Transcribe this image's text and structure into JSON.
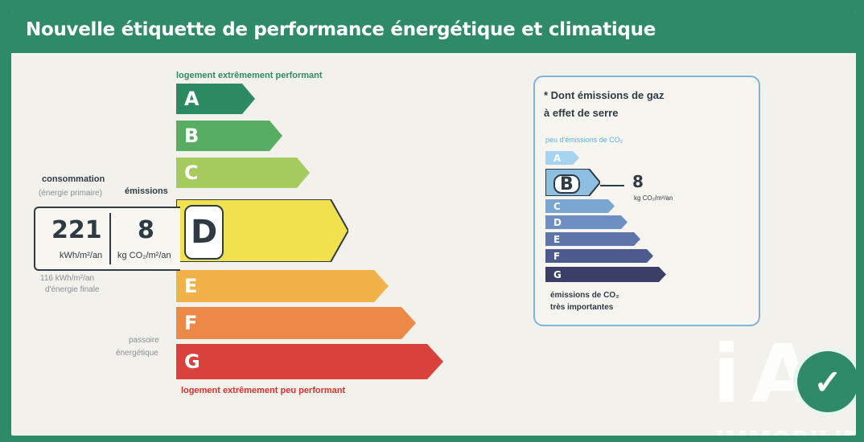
{
  "title": "Nouvelle étiquette de performance énergétique et climatique",
  "energy_label": {
    "top_caption": "logement extrêmement performant",
    "bottom_caption": "logement extrêmement peu performant",
    "classes": [
      {
        "letter": "A",
        "color": "#2c8a63"
      },
      {
        "letter": "B",
        "color": "#57ad62"
      },
      {
        "letter": "C",
        "color": "#a5ca5e"
      },
      {
        "letter": "D",
        "color": "#f1e14e"
      },
      {
        "letter": "E",
        "color": "#f2b24a"
      },
      {
        "letter": "F",
        "color": "#ec8946"
      },
      {
        "letter": "G",
        "color": "#d9423a"
      }
    ],
    "current_class": "D",
    "consumption_label": "consommation",
    "consumption_sub": "(énergie primaire)",
    "consumption_value": "221",
    "consumption_unit": "kWh/m²/an",
    "emissions_label": "émissions",
    "emissions_value": "8",
    "emissions_unit": "kg CO₂/m²/an",
    "star": "*",
    "final_energy_1": "116 kWh/m²/an",
    "final_energy_2": "d'énergie finale",
    "passoire_1": "passoire",
    "passoire_2": "énergétique"
  },
  "ghg_panel": {
    "title_line1": "* Dont émissions de gaz",
    "title_line2": "à effet de serre",
    "top_caption": "peu d'émissions de CO₂",
    "bottom_caption_1": "émissions de CO₂",
    "bottom_caption_2": "très importantes",
    "classes": [
      {
        "letter": "A",
        "color": "#a6d4f0"
      },
      {
        "letter": "B",
        "color": "#8fbfe0"
      },
      {
        "letter": "C",
        "color": "#7aa6d2"
      },
      {
        "letter": "D",
        "color": "#6e8fc2"
      },
      {
        "letter": "E",
        "color": "#5f75a9"
      },
      {
        "letter": "F",
        "color": "#4c5a8d"
      },
      {
        "letter": "G",
        "color": "#3b3f67"
      }
    ],
    "current_class": "B",
    "value": "8",
    "unit": "kg CO₂/m²/an"
  },
  "watermark": {
    "logo_i": "i",
    "logo_a": "A",
    "logo_check": "✓",
    "text": "IMMOBILIER"
  }
}
